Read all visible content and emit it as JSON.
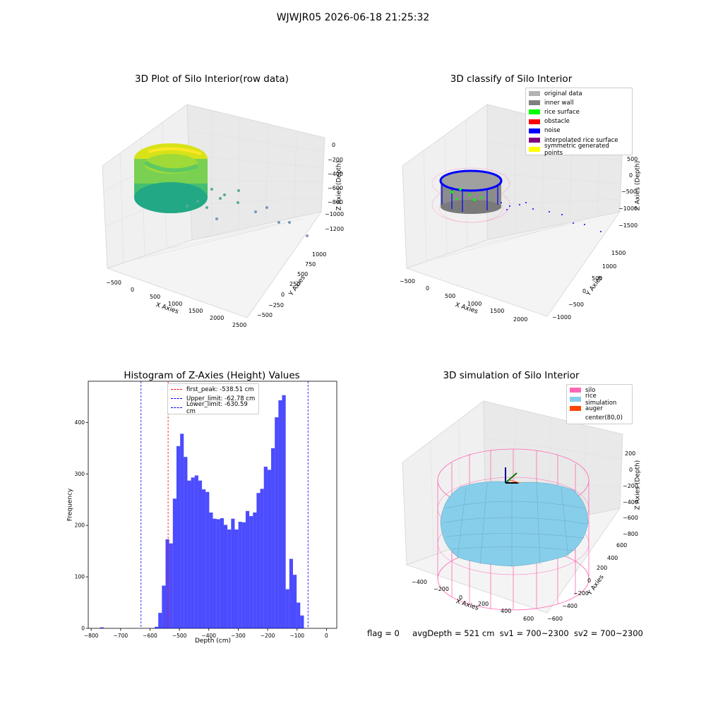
{
  "suptitle": "WJWJR05 2026-06-18 21:25:32",
  "panels": {
    "p1": {
      "title": "3D Plot of Silo Interior(row data)",
      "xlabel": "X Axies",
      "ylabel": "Y Axies",
      "zlabel": "Z Axies (Depth)",
      "xticks": [
        "−500",
        "0",
        "500",
        "1000",
        "1500",
        "2000",
        "2500"
      ],
      "yticks": [
        "−500",
        "−250",
        "0",
        "250",
        "500",
        "750",
        "1000"
      ],
      "zticks": [
        "0",
        "−200",
        "−400",
        "−600",
        "−800",
        "−1000",
        "−1200"
      ]
    },
    "p2": {
      "title": "3D classify of Silo Interior",
      "xlabel": "X Axies",
      "ylabel": "Y Axies",
      "zlabel": "Z Axies (Depth)",
      "xticks": [
        "−500",
        "0",
        "500",
        "1000",
        "1500",
        "2000"
      ],
      "yticks": [
        "−1000",
        "−500",
        "0",
        "500",
        "1000",
        "1500"
      ],
      "zticks": [
        "500",
        "0",
        "−500",
        "−1000",
        "−1500"
      ],
      "legend": [
        {
          "label": "original data",
          "color": "#b3b3b3"
        },
        {
          "label": "inner wall",
          "color": "#808080"
        },
        {
          "label": "rice surface",
          "color": "#00ff00"
        },
        {
          "label": "obstacle",
          "color": "#ff0000"
        },
        {
          "label": "noise",
          "color": "#0000ff"
        },
        {
          "label": "interpolated rice surface",
          "color": "#800080"
        },
        {
          "label": "symmetric generated points",
          "color": "#ffff00"
        }
      ]
    },
    "p4": {
      "title": "3D simulation of Silo Interior",
      "xlabel": "X Axies",
      "ylabel": "Y Axies",
      "zlabel": "Z Axies (Depth)",
      "xticks": [
        "−400",
        "−200",
        "0",
        "200",
        "400",
        "600"
      ],
      "yticks": [
        "−600",
        "−400",
        "−200",
        "0",
        "200",
        "400",
        "600"
      ],
      "zticks": [
        "200",
        "0",
        "−200",
        "−400",
        "−600",
        "−800"
      ],
      "legend": [
        {
          "label": "silo",
          "color": "#ff69b4"
        },
        {
          "label": "rice simulation",
          "color": "#87ceeb"
        },
        {
          "label": "auger",
          "color": "#ff4500"
        },
        {
          "label": "center(80,0)",
          "color": "#ffffff"
        }
      ]
    }
  },
  "chart_data": {
    "type": "bar",
    "title": "Histogram of Z-Axies (Height) Values",
    "xlabel": "Depth (cm)",
    "ylabel": "Frequency",
    "xlim": [
      -810,
      35
    ],
    "ylim": [
      0,
      480
    ],
    "xticks": [
      -800,
      -700,
      -600,
      -500,
      -400,
      -300,
      -200,
      -100,
      0
    ],
    "yticks": [
      0,
      100,
      200,
      300,
      400
    ],
    "bar_color": "#0000ff",
    "bin_edges_start": -770,
    "bin_width": 12.38,
    "values": [
      2,
      0,
      0,
      0,
      0,
      0,
      0,
      0,
      0,
      0,
      0,
      0,
      0,
      0,
      0,
      3,
      30,
      83,
      173,
      165,
      252,
      354,
      378,
      333,
      287,
      293,
      297,
      287,
      270,
      265,
      225,
      213,
      212,
      214,
      201,
      192,
      213,
      192,
      207,
      206,
      228,
      218,
      225,
      263,
      271,
      314,
      308,
      350,
      410,
      443,
      453,
      76,
      135,
      104,
      50,
      25
    ],
    "vlines": [
      {
        "label": "first_peak: -538.51 cm",
        "x": -538.51,
        "color": "#ff0000"
      },
      {
        "label": "Upper_limit: -62.78 cm",
        "x": -62.78,
        "color": "#0000ff"
      },
      {
        "label": "Lower_limit: -630.59 cm",
        "x": -630.59,
        "color": "#0000ff"
      }
    ]
  },
  "status": {
    "flag": "flag = 0",
    "avg": "avgDepth = 521 cm",
    "sv1": "sv1 = 700~2300",
    "sv2": "sv2 = 700~2300"
  }
}
